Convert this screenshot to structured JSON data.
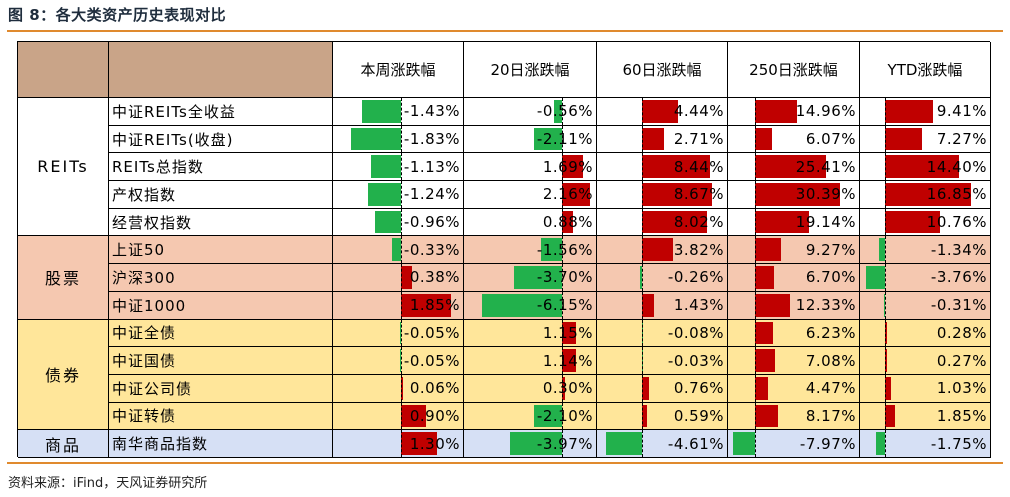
{
  "title": "图 8：各大类资产历史表现对比",
  "source": "资料来源：iFind，天风证券研究所",
  "colors": {
    "positive_bar": "#c00000",
    "negative_bar": "#22b14c",
    "rule": "#e08a2e",
    "header_brown": "#c9a488",
    "reits_bg": "#ffffff",
    "stock_bg": "#f5c8b0",
    "bond_bg": "#ffe69a",
    "comm_bg": "#d6e0f5"
  },
  "chart_data": {
    "type": "table",
    "columns": [
      "本周涨跌幅",
      "20日涨跌幅",
      "60日涨跌幅",
      "250日涨跌幅",
      "YTD涨跌幅"
    ],
    "groups": [
      {
        "category": "REITs",
        "bg": "reits",
        "rows": [
          {
            "name": "中证REITs全收益",
            "values": [
              -1.43,
              -0.56,
              4.44,
              14.96,
              9.41
            ],
            "labels": [
              "-1.43%",
              "-0.56%",
              "4.44%",
              "14.96%",
              "9.41%"
            ]
          },
          {
            "name": "中证REITs(收盘)",
            "values": [
              -1.83,
              -2.11,
              2.71,
              6.07,
              7.27
            ],
            "labels": [
              "-1.83%",
              "-2.11%",
              "2.71%",
              "6.07%",
              "7.27%"
            ]
          },
          {
            "name": "REITs总指数",
            "values": [
              -1.13,
              1.69,
              8.44,
              25.41,
              14.4
            ],
            "labels": [
              "-1.13%",
              "1.69%",
              "8.44%",
              "25.41%",
              "14.40%"
            ]
          },
          {
            "name": "产权指数",
            "values": [
              -1.24,
              2.16,
              8.67,
              30.39,
              16.85
            ],
            "labels": [
              "-1.24%",
              "2.16%",
              "8.67%",
              "30.39%",
              "16.85%"
            ]
          },
          {
            "name": "经营权指数",
            "values": [
              -0.96,
              0.88,
              8.02,
              19.14,
              10.76
            ],
            "labels": [
              "-0.96%",
              "0.88%",
              "8.02%",
              "19.14%",
              "10.76%"
            ]
          }
        ]
      },
      {
        "category": "股票",
        "bg": "stock",
        "rows": [
          {
            "name": "上证50",
            "values": [
              -0.33,
              -1.56,
              3.82,
              9.27,
              -1.34
            ],
            "labels": [
              "-0.33%",
              "-1.56%",
              "3.82%",
              "9.27%",
              "-1.34%"
            ]
          },
          {
            "name": "沪深300",
            "values": [
              0.38,
              -3.7,
              -0.26,
              6.7,
              -3.76
            ],
            "labels": [
              "0.38%",
              "-3.70%",
              "-0.26%",
              "6.70%",
              "-3.76%"
            ]
          },
          {
            "name": "中证1000",
            "values": [
              1.85,
              -6.15,
              1.43,
              12.33,
              -0.31
            ],
            "labels": [
              "1.85%",
              "-6.15%",
              "1.43%",
              "12.33%",
              "-0.31%"
            ]
          }
        ]
      },
      {
        "category": "债券",
        "bg": "bond",
        "rows": [
          {
            "name": "中证全债",
            "values": [
              -0.05,
              1.15,
              -0.08,
              6.23,
              0.28
            ],
            "labels": [
              "-0.05%",
              "1.15%",
              "-0.08%",
              "6.23%",
              "0.28%"
            ]
          },
          {
            "name": "中证国债",
            "values": [
              -0.05,
              1.14,
              -0.03,
              7.08,
              0.27
            ],
            "labels": [
              "-0.05%",
              "1.14%",
              "-0.03%",
              "7.08%",
              "0.27%"
            ]
          },
          {
            "name": "中证公司债",
            "values": [
              0.06,
              0.3,
              0.76,
              4.47,
              1.03
            ],
            "labels": [
              "0.06%",
              "0.30%",
              "0.76%",
              "4.47%",
              "1.03%"
            ]
          },
          {
            "name": "中证转债",
            "values": [
              0.9,
              -2.1,
              0.59,
              8.17,
              1.85
            ],
            "labels": [
              "0.90%",
              "-2.10%",
              "0.59%",
              "8.17%",
              "1.85%"
            ]
          }
        ]
      },
      {
        "category": "商品",
        "bg": "comm",
        "rows": [
          {
            "name": "南华商品指数",
            "values": [
              1.3,
              -3.97,
              -4.61,
              -7.97,
              -1.75
            ],
            "labels": [
              "1.30%",
              "-3.97%",
              "-4.61%",
              "-7.97%",
              "-1.75%"
            ]
          }
        ]
      }
    ]
  }
}
